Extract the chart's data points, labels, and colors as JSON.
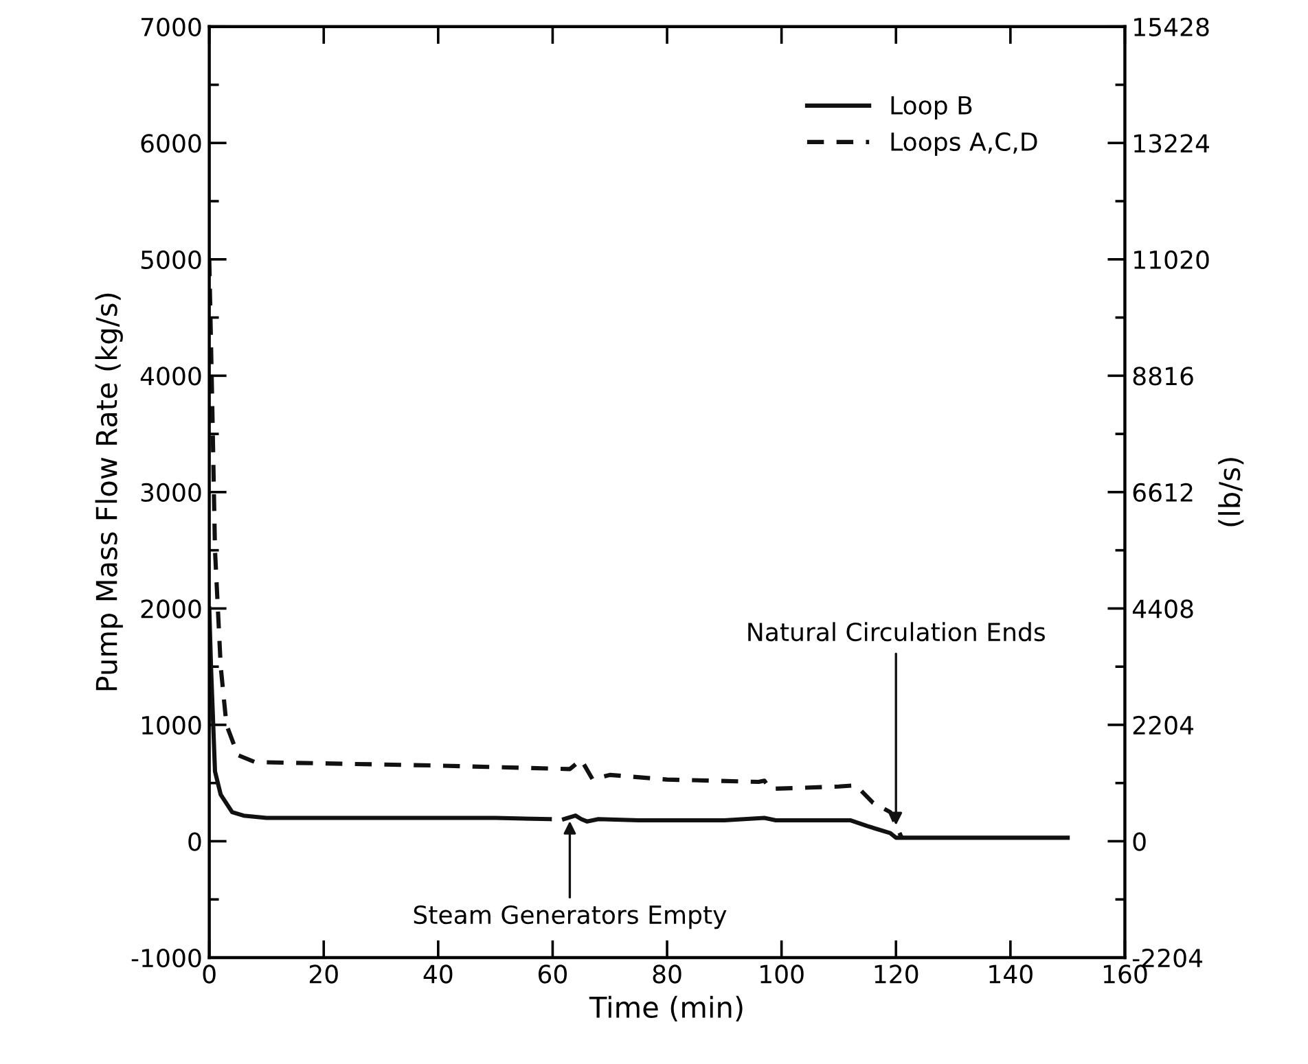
{
  "chart_data": {
    "type": "line",
    "xlabel": "Time (min)",
    "ylabel": "Pump Mass Flow Rate (kg/s)",
    "y2label": "(lb/s)",
    "xlim": [
      0,
      160
    ],
    "xticks": [
      0,
      20,
      40,
      60,
      80,
      100,
      120,
      140,
      160
    ],
    "ylim": [
      -1000,
      7000
    ],
    "yticks": [
      -1000,
      0,
      1000,
      2000,
      3000,
      4000,
      5000,
      6000,
      7000
    ],
    "y2lim": [
      -2204,
      15428
    ],
    "y2ticks": [
      -2204,
      0,
      2204,
      4408,
      6612,
      8816,
      11020,
      13224,
      15428
    ],
    "grid": false,
    "legend": "top right",
    "series": [
      {
        "name": "Loop B",
        "color": "#111111",
        "line_style": "solid",
        "x": [
          0,
          0.3,
          1,
          2,
          4,
          6,
          10,
          30,
          50,
          59.5,
          60.5,
          62,
          64,
          65,
          66,
          68,
          75,
          90,
          97,
          99,
          105,
          112,
          115,
          119,
          120,
          125,
          130,
          140,
          150
        ],
        "values": [
          2000,
          1500,
          600,
          400,
          250,
          220,
          200,
          200,
          200,
          190,
          null,
          190,
          220,
          190,
          170,
          190,
          180,
          180,
          200,
          180,
          180,
          180,
          130,
          70,
          30,
          30,
          30,
          30,
          30
        ]
      },
      {
        "name": "Loops A,C,D",
        "color": "#111111",
        "line_style": "dashed",
        "x": [
          0,
          0.5,
          1,
          2,
          3,
          5,
          8,
          40,
          63,
          65,
          67,
          70,
          80,
          96,
          97,
          98,
          110,
          113,
          116,
          119,
          121
        ],
        "values": [
          5000,
          3800,
          2500,
          1500,
          1000,
          740,
          680,
          650,
          620,
          700,
          530,
          570,
          530,
          510,
          520,
          450,
          470,
          480,
          330,
          250,
          30
        ]
      }
    ],
    "annotations": [
      {
        "text": "Steam Generators Empty",
        "x": 63,
        "y": 190
      },
      {
        "text": "Natural Circulation Ends",
        "x": 120,
        "y": 120
      }
    ]
  }
}
